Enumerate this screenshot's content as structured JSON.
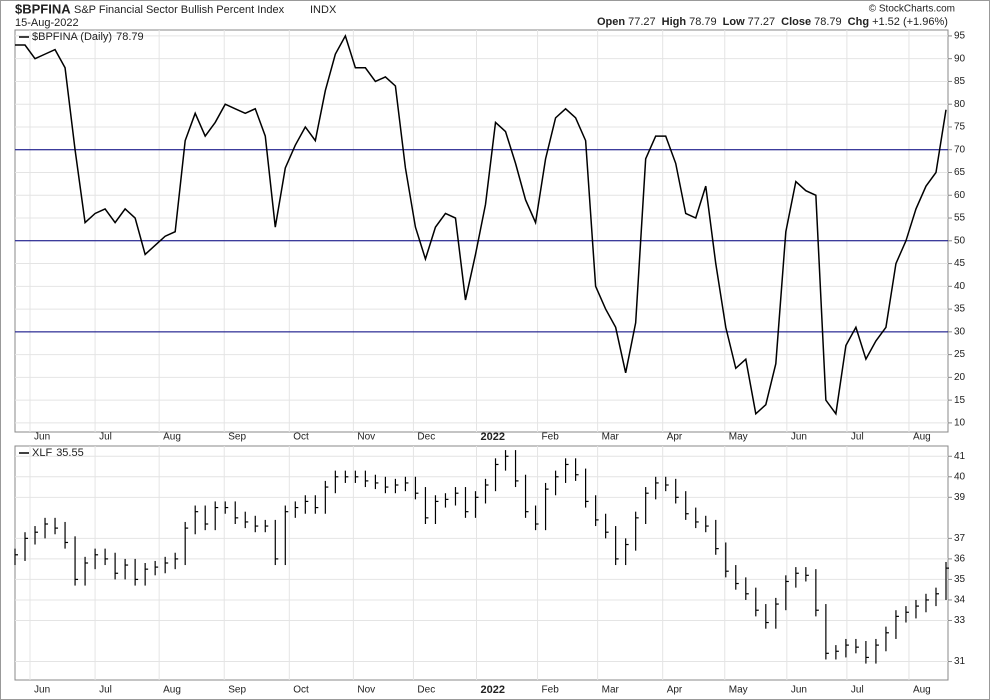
{
  "header": {
    "symbol": "$BPFINA",
    "name": "S&P Financial Sector Bullish Percent Index",
    "exchange": "INDX",
    "date": "15-Aug-2022",
    "copyright": "© StockCharts.com",
    "quote": [
      {
        "label": "Open",
        "value": "77.27"
      },
      {
        "label": "High",
        "value": "78.79"
      },
      {
        "label": "Low",
        "value": "77.27"
      },
      {
        "label": "Close",
        "value": "78.79"
      },
      {
        "label": "Chg",
        "value": "+1.52 (+1.96%)"
      }
    ]
  },
  "chart_data": [
    {
      "type": "line",
      "legend": "$BPFINA (Daily)",
      "color": "#000000",
      "values": [
        93,
        93,
        90,
        91,
        92,
        88,
        70,
        54,
        56,
        57,
        54,
        57,
        55,
        47,
        49,
        51,
        52,
        72,
        78,
        73,
        76,
        80,
        79,
        78,
        79,
        73,
        53,
        66,
        71,
        75,
        72,
        83,
        91,
        95,
        88,
        88,
        85,
        86,
        84,
        66,
        53,
        46,
        53,
        56,
        55,
        37,
        47,
        58,
        76,
        74,
        67,
        59,
        54,
        68,
        77,
        79,
        77,
        72,
        40,
        35,
        31,
        21,
        32,
        68,
        73,
        73,
        67,
        56,
        55,
        62,
        45,
        31,
        22,
        24,
        12,
        14,
        23,
        52,
        63,
        61,
        60,
        15,
        12,
        27,
        31,
        24,
        28,
        31,
        45,
        50,
        57,
        62,
        65,
        78.79
      ],
      "xlim": [
        0,
        93
      ],
      "ylim": [
        8,
        96.3
      ],
      "yticks": [
        10,
        15,
        20,
        25,
        30,
        35,
        40,
        45,
        50,
        55,
        60,
        65,
        70,
        75,
        80,
        85,
        90,
        95
      ],
      "hlines": [
        30,
        50,
        70
      ],
      "hline_color": "#000080",
      "grid": true,
      "xticks": [
        {
          "value": 1.5,
          "label": "Jun"
        },
        {
          "value": 8,
          "label": "Jul"
        },
        {
          "value": 14.4,
          "label": "Aug"
        },
        {
          "value": 20.9,
          "label": "Sep"
        },
        {
          "value": 27.4,
          "label": "Oct"
        },
        {
          "value": 33.8,
          "label": "Nov"
        },
        {
          "value": 39.8,
          "label": "Dec"
        },
        {
          "value": 46.1,
          "label": "2022"
        },
        {
          "value": 52.2,
          "label": "Feb"
        },
        {
          "value": 58.2,
          "label": "Mar"
        },
        {
          "value": 64.7,
          "label": "Apr"
        },
        {
          "value": 70.9,
          "label": "May"
        },
        {
          "value": 77.1,
          "label": "Jun"
        },
        {
          "value": 83.1,
          "label": "Jul"
        },
        {
          "value": 89.3,
          "label": "Aug"
        }
      ]
    },
    {
      "type": "ohlc",
      "legend": "XLF",
      "color": "#000000",
      "high": [
        36.5,
        37.3,
        37.6,
        38,
        38,
        37.8,
        37.1,
        36.1,
        36.5,
        36.5,
        36.3,
        36,
        36,
        35.8,
        35.9,
        36.1,
        36.3,
        37.8,
        38.6,
        38.6,
        38.8,
        38.8,
        38.8,
        38.3,
        38.1,
        37.9,
        37.9,
        38.6,
        38.8,
        39.1,
        39.1,
        39.8,
        40.3,
        40.3,
        40.3,
        40.3,
        40.1,
        40,
        39.9,
        40,
        40,
        39.5,
        39.1,
        39.2,
        39.5,
        39.5,
        39.3,
        39.9,
        40.9,
        41.3,
        41.3,
        40.1,
        38.6,
        39.7,
        40.3,
        40.9,
        40.9,
        40.4,
        39.1,
        38.2,
        37.6,
        37,
        38.3,
        39.5,
        40,
        40,
        39.9,
        39.3,
        38.5,
        38.1,
        37.9,
        36.8,
        35.7,
        35.1,
        34.6,
        33.8,
        34.1,
        35.2,
        35.6,
        35.6,
        35.5,
        33.8,
        31.8,
        32.1,
        32.1,
        32,
        32.1,
        32.7,
        33.5,
        33.7,
        34,
        34.3,
        34.6,
        35.85
      ],
      "low": [
        35.7,
        35.9,
        36.7,
        37,
        37.2,
        36.5,
        34.7,
        34.7,
        35.5,
        35.7,
        35,
        35,
        34.7,
        34.7,
        35.2,
        35.3,
        35.5,
        35.7,
        37.2,
        37.4,
        37.4,
        38.2,
        37.7,
        37.5,
        37.3,
        37.3,
        35.7,
        35.7,
        38,
        38.2,
        38.2,
        38.2,
        39.2,
        39.7,
        39.7,
        39.5,
        39.4,
        39.2,
        39.2,
        39.3,
        38.9,
        37.7,
        37.7,
        38.5,
        38.6,
        38,
        38,
        38.7,
        39.3,
        40.3,
        39.5,
        38,
        37.4,
        37.4,
        39.1,
        39.7,
        39.8,
        38.5,
        37.6,
        37,
        35.7,
        35.7,
        36.4,
        37.7,
        38.9,
        39.3,
        38.7,
        37.9,
        37.5,
        37.3,
        36.2,
        35.1,
        34.5,
        34,
        33.2,
        32.6,
        32.6,
        33.5,
        34.6,
        34.9,
        33.2,
        31.1,
        31.1,
        31.2,
        31.4,
        30.9,
        30.9,
        31.5,
        32.1,
        32.9,
        33.1,
        33.4,
        33.7,
        34
      ],
      "close": [
        36.2,
        37,
        37.3,
        37.7,
        37.5,
        36.8,
        35,
        35.8,
        36.2,
        36,
        35.3,
        35.7,
        35,
        35.5,
        35.6,
        35.8,
        36,
        37.5,
        38.3,
        37.7,
        38.5,
        38.5,
        38,
        37.8,
        37.6,
        37.6,
        36,
        38.3,
        38.5,
        38.8,
        38.5,
        39.5,
        40,
        40,
        40,
        39.8,
        39.7,
        39.5,
        39.6,
        39.7,
        39.2,
        38,
        38.8,
        38.9,
        39.2,
        38.3,
        39,
        39.6,
        40.6,
        41,
        39.8,
        38.3,
        37.7,
        39.4,
        40,
        40.6,
        40.1,
        38.8,
        37.9,
        37.3,
        36,
        36.7,
        38,
        39.2,
        39.7,
        39.6,
        39,
        38.2,
        37.8,
        37.6,
        36.5,
        35.4,
        34.8,
        34.3,
        33.5,
        32.9,
        33.8,
        34.9,
        35.3,
        35.2,
        33.5,
        31.4,
        31.5,
        31.8,
        31.7,
        31.2,
        31.8,
        32.4,
        33.2,
        33.4,
        33.7,
        34,
        34.3,
        35.55
      ],
      "xlim": [
        0,
        93
      ],
      "ylim": [
        30.1,
        41.5
      ],
      "yticks": [
        31,
        33,
        34,
        35,
        36,
        37,
        39,
        40,
        41
      ],
      "grid": true,
      "xticks": [
        {
          "value": 1.5,
          "label": "Jun"
        },
        {
          "value": 8,
          "label": "Jul"
        },
        {
          "value": 14.4,
          "label": "Aug"
        },
        {
          "value": 20.9,
          "label": "Sep"
        },
        {
          "value": 27.4,
          "label": "Oct"
        },
        {
          "value": 33.8,
          "label": "Nov"
        },
        {
          "value": 39.8,
          "label": "Dec"
        },
        {
          "value": 46.1,
          "label": "2022"
        },
        {
          "value": 52.2,
          "label": "Feb"
        },
        {
          "value": 58.2,
          "label": "Mar"
        },
        {
          "value": 64.7,
          "label": "Apr"
        },
        {
          "value": 70.9,
          "label": "May"
        },
        {
          "value": 77.1,
          "label": "Jun"
        },
        {
          "value": 83.1,
          "label": "Jul"
        },
        {
          "value": 89.3,
          "label": "Aug"
        }
      ]
    }
  ]
}
